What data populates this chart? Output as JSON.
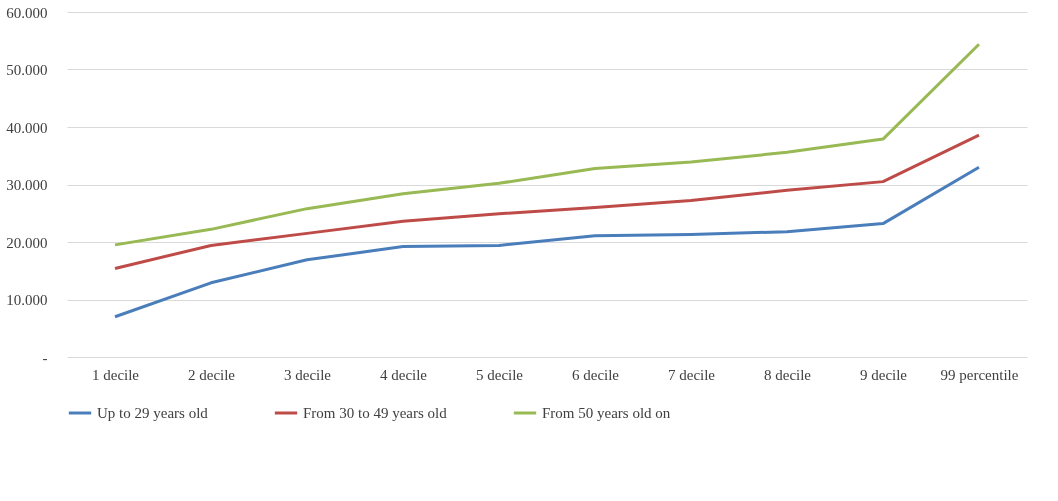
{
  "chart_data": {
    "type": "line",
    "categories": [
      "1 decile",
      "2 decile",
      "3 decile",
      "4 decile",
      "5 decile",
      "6 decile",
      "7 decile",
      "8 decile",
      "9 decile",
      "99 percentile"
    ],
    "series": [
      {
        "name": "Up to 29 years old",
        "color": "#4a7ebb",
        "values": [
          7000,
          12900,
          16900,
          19200,
          19400,
          21100,
          21300,
          21800,
          23200,
          33000
        ]
      },
      {
        "name": "From 30 to 49 years old",
        "color": "#be4b48",
        "values": [
          15400,
          19400,
          21500,
          23600,
          24900,
          26000,
          27200,
          29000,
          30500,
          38600
        ]
      },
      {
        "name": "From 50 years old on",
        "color": "#98b954",
        "values": [
          19500,
          22200,
          25800,
          28400,
          30200,
          32800,
          33900,
          35600,
          37900,
          54400
        ]
      }
    ],
    "ylim": [
      0,
      60000
    ],
    "yticks": [
      {
        "value": 0,
        "label": "-"
      },
      {
        "value": 10000,
        "label": "10.000"
      },
      {
        "value": 20000,
        "label": "20.000"
      },
      {
        "value": 30000,
        "label": "30.000"
      },
      {
        "value": 40000,
        "label": "40.000"
      },
      {
        "value": 50000,
        "label": "50.000"
      },
      {
        "value": 60000,
        "label": "60.000"
      }
    ],
    "grid": "y",
    "legend": "bottom",
    "marker": "none",
    "line_style": "solid"
  }
}
